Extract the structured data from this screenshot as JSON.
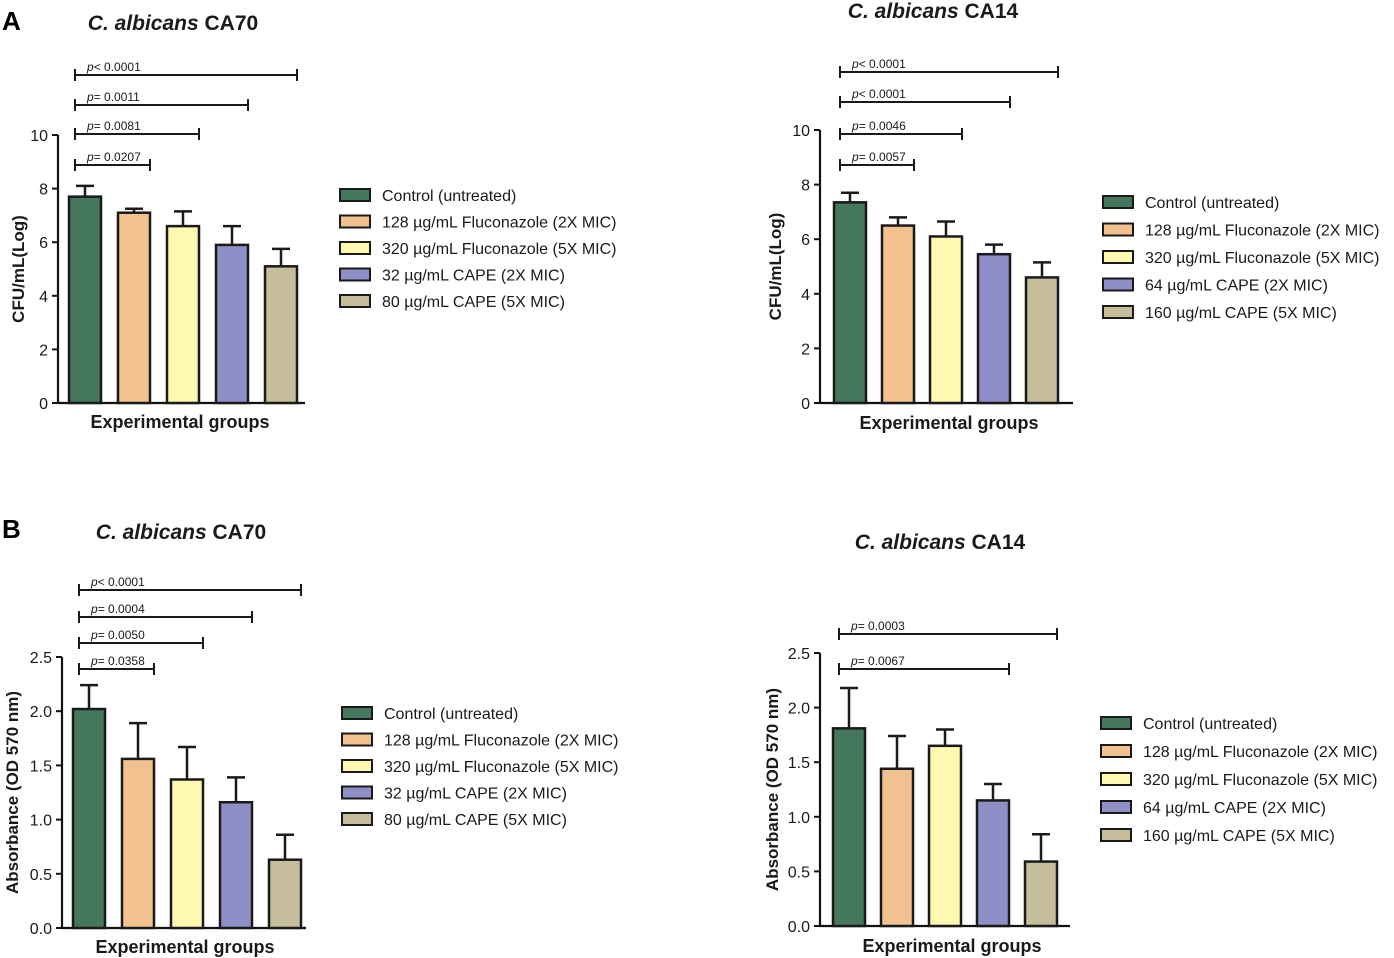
{
  "panels": [
    {
      "letter": "A"
    },
    {
      "letter": "B"
    }
  ],
  "colors": [
    "#45775c",
    "#f1c290",
    "#fff8b0",
    "#8f8fc7",
    "#c6bd9a"
  ],
  "chart_data": [
    {
      "type": "bar",
      "panel": "A",
      "title_species": "C. albicans",
      "title_strain": "CA70",
      "ylabel": "CFU/mL(Log)",
      "xlabel": "Experimental groups",
      "ylim": [
        0,
        10
      ],
      "yticks": [
        0,
        2,
        4,
        6,
        8,
        10
      ],
      "ytick_labels": [
        "0",
        "2",
        "4",
        "6",
        "8",
        "10"
      ],
      "categories": [
        "Control (untreated)",
        "128 µg/mL Fluconazole (2X MIC)",
        "320 µg/mL Fluconazole (5X MIC)",
        "32 µg/mL CAPE (2X MIC)",
        "80 µg/mL CAPE (5X MIC)"
      ],
      "values": [
        7.7,
        7.1,
        6.6,
        5.9,
        5.1
      ],
      "errors": [
        0.4,
        0.15,
        0.55,
        0.7,
        0.65
      ],
      "legend": [
        {
          "label": "Control (untreated)",
          "suffix": ""
        },
        {
          "label": "128 µg/mL Fluconazole",
          "suffix": " (2X MIC)"
        },
        {
          "label": "320 µg/mL Fluconazole",
          "suffix": " (5X MIC)"
        },
        {
          "label": "32 µg/mL CAPE",
          "suffix": " (2X MIC)"
        },
        {
          "label": "80 µg/mL CAPE",
          "suffix": " (5X MIC)"
        }
      ],
      "comparisons": [
        {
          "from": 0,
          "to": 1,
          "p": "0.0207",
          "op": "="
        },
        {
          "from": 0,
          "to": 2,
          "p": "0.0081",
          "op": "="
        },
        {
          "from": 0,
          "to": 3,
          "p": "0.0011",
          "op": "="
        },
        {
          "from": 0,
          "to": 4,
          "p": "0.0001",
          "op": "<"
        }
      ]
    },
    {
      "type": "bar",
      "panel": "A",
      "title_species": "C. albicans",
      "title_strain": "CA14",
      "ylabel": "CFU/mL(Log)",
      "xlabel": "Experimental groups",
      "ylim": [
        0,
        10
      ],
      "yticks": [
        0,
        2,
        4,
        6,
        8,
        10
      ],
      "ytick_labels": [
        "0",
        "2",
        "4",
        "6",
        "8",
        "10"
      ],
      "categories": [
        "Control (untreated)",
        "128 µg/mL Fluconazole (2X MIC)",
        "320 µg/mL Fluconazole (5X MIC)",
        "64 µg/mL CAPE (2X MIC)",
        "160 µg/mL CAPE (5X MIC)"
      ],
      "values": [
        7.35,
        6.5,
        6.1,
        5.45,
        4.6
      ],
      "errors": [
        0.35,
        0.3,
        0.55,
        0.35,
        0.55
      ],
      "legend": [
        {
          "label": "Control (untreated)",
          "suffix": ""
        },
        {
          "label": "128 µg/mL Fluconazole",
          "suffix": " (2X MIC)"
        },
        {
          "label": "320 µg/mL Fluconazole",
          "suffix": " (5X MIC)"
        },
        {
          "label": "64 µg/mL CAPE",
          "suffix": " (2X MIC)"
        },
        {
          "label": "160 µg/mL CAPE",
          "suffix": " (5X MIC)"
        }
      ],
      "comparisons": [
        {
          "from": 0,
          "to": 1,
          "p": "0.0057",
          "op": "="
        },
        {
          "from": 0,
          "to": 2,
          "p": "0.0046",
          "op": "="
        },
        {
          "from": 0,
          "to": 3,
          "p": "0.0001",
          "op": "<"
        },
        {
          "from": 0,
          "to": 4,
          "p": "0.0001",
          "op": "<"
        }
      ]
    },
    {
      "type": "bar",
      "panel": "B",
      "title_species": "C. albicans",
      "title_strain": "CA70",
      "ylabel": "Absorbance (OD 570 nm)",
      "xlabel": "Experimental groups",
      "ylim": [
        0,
        2.5
      ],
      "yticks": [
        0,
        0.5,
        1.0,
        1.5,
        2.0,
        2.5
      ],
      "ytick_labels": [
        "0.0",
        "0.5",
        "1.0",
        "1.5",
        "2.0",
        "2.5"
      ],
      "categories": [
        "Control (untreated)",
        "128 µg/mL Fluconazole (2X MIC)",
        "320 µg/mL Fluconazole (5X MIC)",
        "32 µg/mL CAPE (2X MIC)",
        "80 µg/mL CAPE (5X MIC)"
      ],
      "values": [
        2.02,
        1.56,
        1.37,
        1.16,
        0.63
      ],
      "errors": [
        0.22,
        0.33,
        0.3,
        0.23,
        0.23
      ],
      "legend": [
        {
          "label": "Control (untreated)",
          "suffix": ""
        },
        {
          "label": "128 µg/mL Fluconazole",
          "suffix": " (2X MIC)"
        },
        {
          "label": "320 µg/mL Fluconazole",
          "suffix": " (5X MIC)"
        },
        {
          "label": "32 µg/mL CAPE",
          "suffix": " (2X MIC)"
        },
        {
          "label": "80 µg/mL CAPE",
          "suffix": " (5X MIC)"
        }
      ],
      "comparisons": [
        {
          "from": 0,
          "to": 1,
          "p": "0.0358",
          "op": "="
        },
        {
          "from": 0,
          "to": 2,
          "p": "0.0050",
          "op": "="
        },
        {
          "from": 0,
          "to": 3,
          "p": "0.0004",
          "op": "="
        },
        {
          "from": 0,
          "to": 4,
          "p": "0.0001",
          "op": "<"
        }
      ]
    },
    {
      "type": "bar",
      "panel": "B",
      "title_species": "C. albicans",
      "title_strain": "CA14",
      "ylabel": "Absorbance (OD 570 nm)",
      "xlabel": "Experimental groups",
      "ylim": [
        0,
        2.5
      ],
      "yticks": [
        0,
        0.5,
        1.0,
        1.5,
        2.0,
        2.5
      ],
      "ytick_labels": [
        "0.0",
        "0.5",
        "1.0",
        "1.5",
        "2.0",
        "2.5"
      ],
      "categories": [
        "Control (untreated)",
        "128 µg/mL Fluconazole (2X MIC)",
        "320 µg/mL Fluconazole (5X MIC)",
        "64 µg/mL CAPE (2X MIC)",
        "160 µg/mL CAPE (5X MIC)"
      ],
      "values": [
        1.81,
        1.44,
        1.65,
        1.15,
        0.59
      ],
      "errors": [
        0.37,
        0.3,
        0.15,
        0.15,
        0.25
      ],
      "legend": [
        {
          "label": "Control (untreated)",
          "suffix": ""
        },
        {
          "label": "128 µg/mL Fluconazole",
          "suffix": " (2X MIC)"
        },
        {
          "label": "320 µg/mL Fluconazole",
          "suffix": " (5X MIC)"
        },
        {
          "label": "64 µg/mL CAPE",
          "suffix": " (2X MIC)"
        },
        {
          "label": "160 µg/mL CAPE",
          "suffix": " (5X MIC)"
        }
      ],
      "comparisons": [
        {
          "from": 0,
          "to": 3,
          "p": "0.0067",
          "op": "="
        },
        {
          "from": 0,
          "to": 4,
          "p": "0.0003",
          "op": "="
        }
      ]
    }
  ]
}
